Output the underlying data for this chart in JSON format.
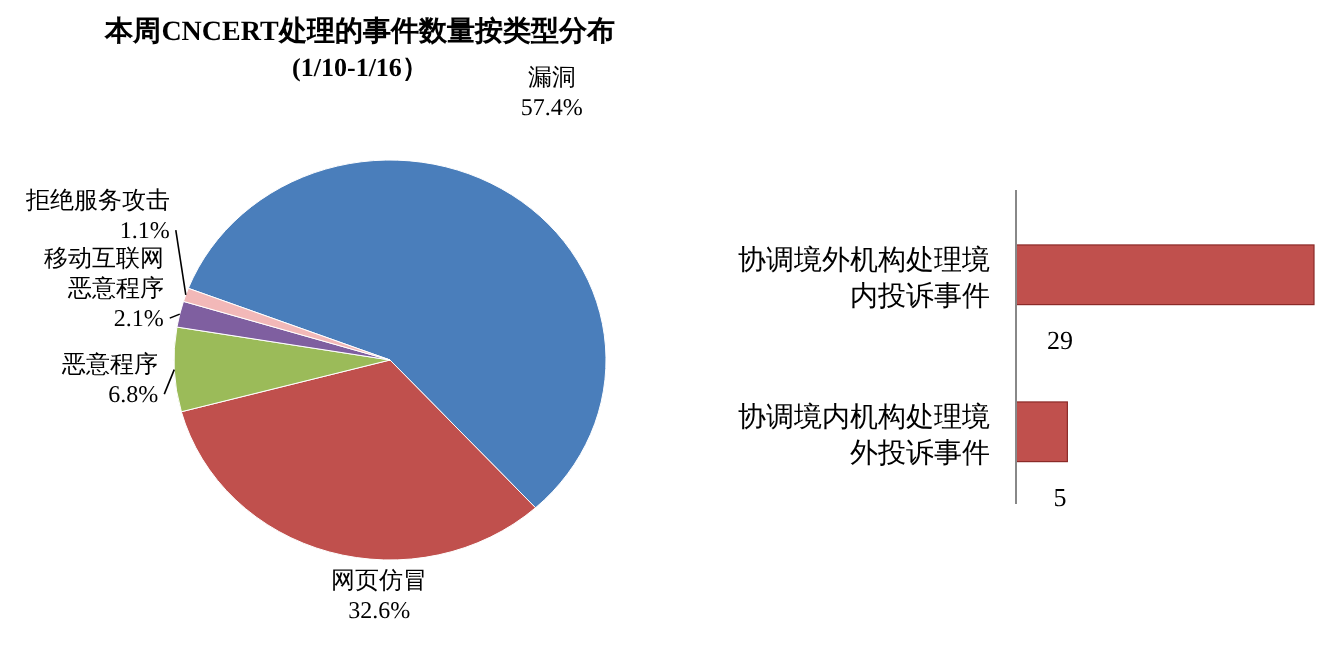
{
  "chart_data": [
    {
      "type": "pie",
      "title": "本周CNCERT处理的事件数量按类型分布",
      "subtitle": "(1/10-1/16）",
      "categories": [
        "漏洞",
        "网页仿冒",
        "恶意程序",
        "移动互联网恶意程序",
        "拒绝服务攻击"
      ],
      "values": [
        57.4,
        32.6,
        6.8,
        2.1,
        1.1
      ],
      "colors": [
        "#4a7ebb",
        "#c0504d",
        "#9bbb59",
        "#7f5fa0",
        "#f2b8b8"
      ],
      "value_labels": [
        "57.4%",
        "32.6%",
        "6.8%",
        "2.1%",
        "1.1%"
      ]
    },
    {
      "type": "bar",
      "orientation": "horizontal",
      "categories": [
        "协调境外机构处理境内投诉事件",
        "协调境内机构处理境外投诉事件"
      ],
      "values": [
        29,
        5
      ],
      "color": "#c0504d",
      "data_labels": true
    }
  ]
}
